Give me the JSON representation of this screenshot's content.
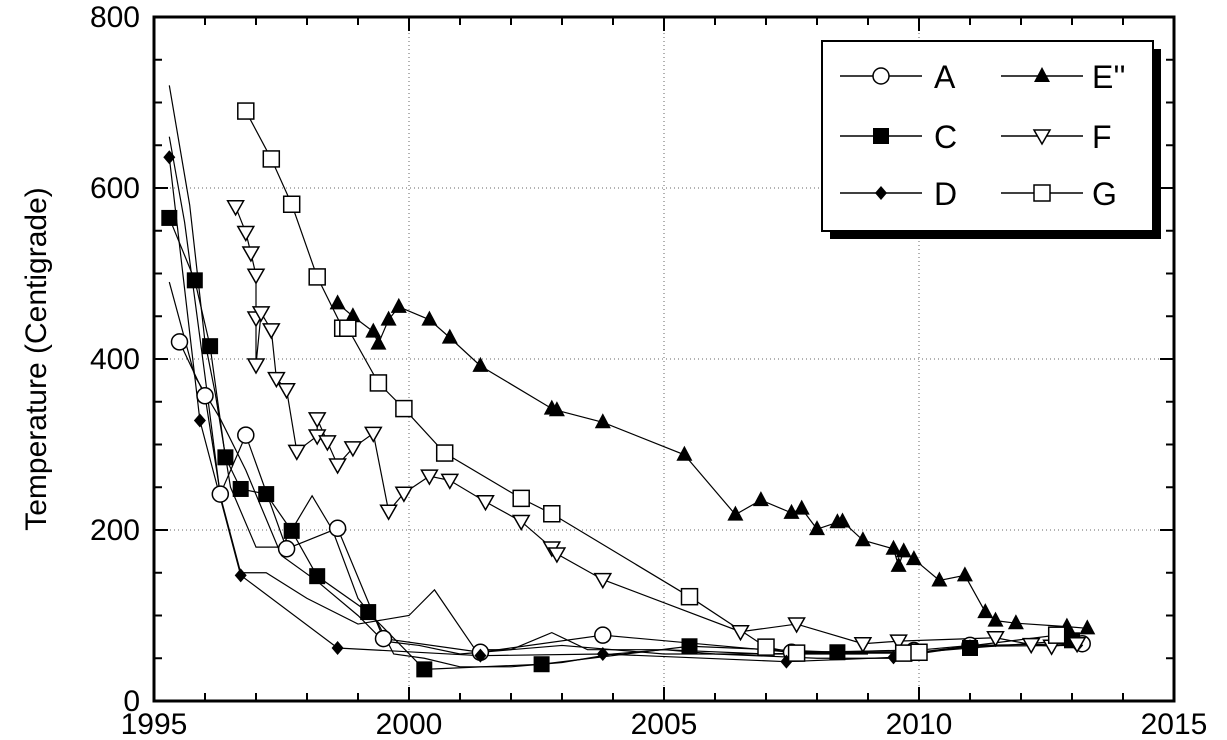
{
  "chart_data": {
    "type": "line",
    "title": "",
    "xlabel": "",
    "ylabel": "Temperature (Centigrade)",
    "xlim": [
      1995,
      2015
    ],
    "ylim": [
      0,
      800
    ],
    "xticks": [
      1995,
      2000,
      2005,
      2010,
      2015
    ],
    "yticks": [
      0,
      200,
      400,
      600,
      800
    ],
    "grid": true,
    "legend_position": "top-right",
    "series": [
      {
        "name": "A",
        "marker": "circle-open",
        "points": [
          [
            1995.5,
            420
          ],
          [
            1996.0,
            357
          ],
          [
            1996.3,
            242
          ],
          [
            1996.8,
            311
          ],
          [
            1997.6,
            178
          ],
          [
            1998.6,
            202
          ],
          [
            1999.5,
            73
          ],
          [
            2001.4,
            57
          ],
          [
            2003.8,
            77
          ],
          [
            2007.5,
            57
          ],
          [
            2009.9,
            59
          ],
          [
            2011.0,
            65
          ],
          [
            2013.2,
            67
          ]
        ]
      },
      {
        "name": "C",
        "marker": "square-filled",
        "points": [
          [
            1995.3,
            565
          ],
          [
            1995.8,
            492
          ],
          [
            1996.1,
            415
          ],
          [
            1996.4,
            285
          ],
          [
            1996.7,
            248
          ],
          [
            1997.2,
            242
          ],
          [
            1997.7,
            199
          ],
          [
            1998.2,
            146
          ],
          [
            1999.2,
            104
          ],
          [
            2000.3,
            37
          ],
          [
            2002.6,
            43
          ],
          [
            2005.5,
            64
          ],
          [
            2008.4,
            57
          ],
          [
            2010.0,
            57
          ],
          [
            2011.0,
            62
          ],
          [
            2013.0,
            71
          ]
        ]
      },
      {
        "name": "D",
        "marker": "diamond-filled",
        "points": [
          [
            1995.3,
            636
          ],
          [
            1995.9,
            328
          ],
          [
            1996.7,
            147
          ],
          [
            1998.6,
            62
          ],
          [
            2001.4,
            53
          ],
          [
            2003.8,
            55
          ],
          [
            2007.4,
            46
          ],
          [
            2009.5,
            51
          ],
          [
            2011.0,
            64
          ],
          [
            2013.1,
            65
          ]
        ]
      },
      {
        "name": "E''",
        "marker": "triangle-up-filled",
        "points": [
          [
            1998.6,
            465
          ],
          [
            1998.9,
            450
          ],
          [
            1999.3,
            432
          ],
          [
            1999.4,
            418
          ],
          [
            1999.6,
            446
          ],
          [
            1999.8,
            461
          ],
          [
            2000.4,
            446
          ],
          [
            2000.8,
            425
          ],
          [
            2001.4,
            392
          ],
          [
            2002.8,
            342
          ],
          [
            2002.9,
            340
          ],
          [
            2003.8,
            326
          ],
          [
            2005.4,
            288
          ],
          [
            2006.4,
            218
          ],
          [
            2006.9,
            235
          ],
          [
            2007.5,
            220
          ],
          [
            2007.7,
            225
          ],
          [
            2008.0,
            201
          ],
          [
            2008.4,
            209
          ],
          [
            2008.5,
            210
          ],
          [
            2008.9,
            188
          ],
          [
            2009.5,
            178
          ],
          [
            2009.6,
            158
          ],
          [
            2009.7,
            175
          ],
          [
            2009.9,
            166
          ],
          [
            2010.4,
            141
          ],
          [
            2010.9,
            147
          ],
          [
            2011.3,
            104
          ],
          [
            2011.5,
            94
          ],
          [
            2011.9,
            91
          ],
          [
            2012.9,
            87
          ],
          [
            2013.3,
            85
          ]
        ]
      },
      {
        "name": "F",
        "marker": "triangle-down-open",
        "points": [
          [
            1996.6,
            578
          ],
          [
            1996.8,
            548
          ],
          [
            1996.9,
            524
          ],
          [
            1997.0,
            498
          ],
          [
            1997.0,
            448
          ],
          [
            1997.0,
            393
          ],
          [
            1997.1,
            454
          ],
          [
            1997.3,
            434
          ],
          [
            1997.4,
            377
          ],
          [
            1997.6,
            364
          ],
          [
            1997.8,
            292
          ],
          [
            1998.2,
            310
          ],
          [
            1998.2,
            330
          ],
          [
            1998.4,
            303
          ],
          [
            1998.6,
            276
          ],
          [
            1998.9,
            296
          ],
          [
            1999.3,
            313
          ],
          [
            1999.6,
            222
          ],
          [
            1999.9,
            243
          ],
          [
            2000.4,
            263
          ],
          [
            2000.8,
            258
          ],
          [
            2001.5,
            233
          ],
          [
            2002.2,
            210
          ],
          [
            2002.8,
            179
          ],
          [
            2002.9,
            172
          ],
          [
            2003.8,
            142
          ],
          [
            2006.5,
            81
          ],
          [
            2007.6,
            90
          ],
          [
            2008.9,
            67
          ],
          [
            2009.6,
            70
          ],
          [
            2011.5,
            74
          ],
          [
            2012.2,
            66
          ],
          [
            2012.6,
            64
          ],
          [
            2013.1,
            67
          ]
        ]
      },
      {
        "name": "G",
        "marker": "square-open",
        "points": [
          [
            1996.8,
            690
          ],
          [
            1997.3,
            634
          ],
          [
            1997.7,
            581
          ],
          [
            1998.2,
            496
          ],
          [
            1998.7,
            436
          ],
          [
            1998.8,
            436
          ],
          [
            1999.4,
            372
          ],
          [
            1999.9,
            342
          ],
          [
            2000.7,
            290
          ],
          [
            2002.2,
            237
          ],
          [
            2002.8,
            219
          ],
          [
            2005.5,
            122
          ],
          [
            2007.0,
            63
          ],
          [
            2007.6,
            56
          ],
          [
            2009.7,
            56
          ],
          [
            2010.0,
            57
          ],
          [
            2012.7,
            77
          ]
        ]
      }
    ],
    "extra_unmarked_lines": [
      [
        [
          1995.3,
          720
        ],
        [
          1995.7,
          580
        ],
        [
          1996.0,
          420
        ],
        [
          1996.2,
          360
        ],
        [
          1996.5,
          250
        ],
        [
          1997.0,
          180
        ],
        [
          1997.5,
          180
        ],
        [
          1998.1,
          240
        ],
        [
          1998.5,
          200
        ],
        [
          1999.0,
          120
        ],
        [
          1999.4,
          90
        ],
        [
          1999.7,
          55
        ],
        [
          2000.3,
          50
        ],
        [
          2001.0,
          40
        ],
        [
          2002.0,
          40
        ],
        [
          2003.0,
          45
        ],
        [
          2004.0,
          55
        ],
        [
          2005.0,
          60
        ],
        [
          2006.0,
          55
        ],
        [
          2008.0,
          50
        ],
        [
          2010.0,
          50
        ]
      ],
      [
        [
          1995.3,
          660
        ],
        [
          1995.6,
          560
        ],
        [
          1996.0,
          380
        ],
        [
          1996.3,
          240
        ],
        [
          1996.7,
          150
        ],
        [
          1997.2,
          150
        ],
        [
          1998.0,
          120
        ],
        [
          1999.0,
          90
        ],
        [
          2000.0,
          100
        ],
        [
          2000.5,
          130
        ],
        [
          2001.3,
          60
        ],
        [
          2002.0,
          60
        ],
        [
          2002.8,
          80
        ],
        [
          2003.5,
          60
        ],
        [
          2005.0,
          60
        ],
        [
          2007.0,
          55
        ],
        [
          2009.0,
          55
        ]
      ],
      [
        [
          1995.3,
          490
        ],
        [
          1995.8,
          380
        ],
        [
          1996.3,
          330
        ],
        [
          1996.8,
          270
        ],
        [
          1997.5,
          170
        ],
        [
          1998.2,
          140
        ],
        [
          1999.0,
          100
        ],
        [
          1999.5,
          70
        ],
        [
          2000.2,
          65
        ],
        [
          2001.0,
          55
        ],
        [
          2003.0,
          65
        ],
        [
          2005.0,
          55
        ],
        [
          2007.0,
          55
        ],
        [
          2010.0,
          60
        ]
      ]
    ]
  }
}
